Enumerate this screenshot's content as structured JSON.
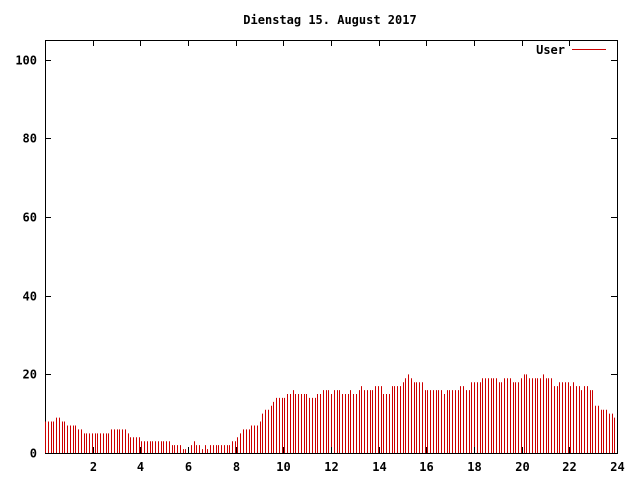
{
  "chart_data": {
    "type": "bar",
    "title": "Dienstag 15. August 2017",
    "xlabel": "",
    "ylabel": "",
    "xlim": [
      0,
      24
    ],
    "ylim": [
      0,
      105
    ],
    "x_ticks": [
      2,
      4,
      6,
      8,
      10,
      12,
      14,
      16,
      18,
      20,
      22,
      24
    ],
    "y_ticks": [
      0,
      20,
      40,
      60,
      80,
      100
    ],
    "grid": false,
    "legend_position": "top-right",
    "series": [
      {
        "name": "User",
        "color": "#cc0000",
        "values": [
          8,
          8,
          8,
          8,
          9,
          9,
          8,
          8,
          7,
          7,
          7,
          7,
          6,
          6,
          5,
          5,
          5,
          5,
          5,
          5,
          5,
          5,
          5,
          5,
          6,
          6,
          6,
          6,
          6,
          6,
          5,
          4,
          4,
          4,
          4,
          3,
          3,
          3,
          3,
          3,
          3,
          3,
          3,
          3,
          3,
          3,
          2,
          2,
          2,
          2,
          1,
          1,
          1,
          2,
          3,
          2,
          2,
          1,
          2,
          1,
          2,
          2,
          2,
          2,
          2,
          2,
          2,
          2,
          3,
          3,
          4,
          5,
          6,
          6,
          6,
          7,
          7,
          7,
          8,
          10,
          11,
          11,
          12,
          13,
          14,
          14,
          14,
          14,
          15,
          15,
          16,
          15,
          15,
          15,
          15,
          15,
          14,
          14,
          14,
          15,
          15,
          16,
          16,
          16,
          15,
          16,
          16,
          16,
          15,
          15,
          15,
          16,
          15,
          15,
          16,
          17,
          16,
          16,
          16,
          16,
          17,
          17,
          17,
          15,
          15,
          15,
          17,
          17,
          17,
          17,
          18,
          19,
          20,
          19,
          18,
          18,
          18,
          18,
          16,
          16,
          16,
          16,
          16,
          16,
          16,
          15,
          16,
          16,
          16,
          16,
          16,
          17,
          17,
          16,
          16,
          18,
          18,
          18,
          18,
          19,
          19,
          19,
          19,
          19,
          19,
          18,
          18,
          19,
          19,
          19,
          18,
          18,
          18,
          19,
          20,
          20,
          19,
          19,
          19,
          19,
          19,
          20,
          19,
          19,
          19,
          17,
          17,
          18,
          18,
          18,
          18,
          17,
          18,
          17,
          17,
          16,
          17,
          17,
          16,
          16,
          12,
          12,
          11,
          11,
          11,
          10,
          10,
          9
        ]
      }
    ]
  }
}
